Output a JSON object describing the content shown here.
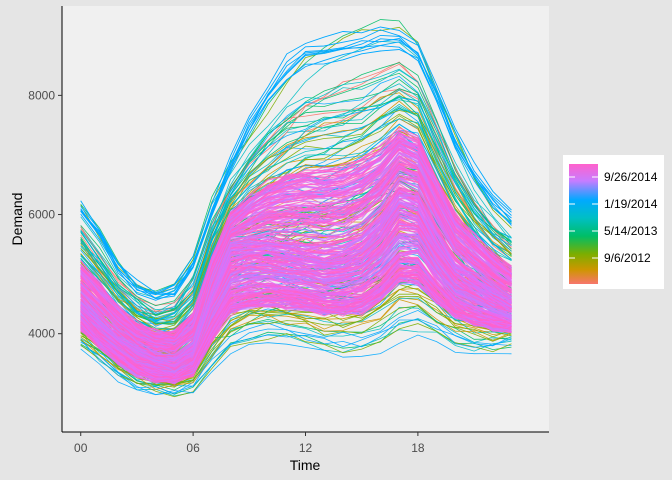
{
  "chart_data": {
    "type": "line",
    "xlabel": "Time",
    "ylabel": "Demand",
    "x_tick_labels": [
      "00",
      "06",
      "12",
      "18"
    ],
    "x_ticks": [
      0,
      6,
      12,
      18
    ],
    "xlim": [
      -1,
      25
    ],
    "y_ticks": [
      4000,
      6000,
      8000
    ],
    "y_tick_labels": [
      "4000",
      "6000",
      "8000"
    ],
    "ylim": [
      2350,
      9500
    ],
    "grid": false,
    "legend": {
      "position": "right",
      "type": "gradient",
      "labels": [
        "9/26/2014",
        "1/19/2014",
        "5/14/2013",
        "9/6/2012"
      ],
      "colors_top_to_bottom": [
        "#ff61cc",
        "#c77cff",
        "#00a9ff",
        "#00bfc4",
        "#00be67",
        "#7cae00",
        "#cd9600",
        "#f8766d"
      ]
    },
    "colors": {
      "panel_background": "#f0f0f0",
      "page_background": "#e5e5e5",
      "recent": "#ff61cc"
    },
    "hours": [
      0,
      1,
      2,
      3,
      4,
      5,
      6,
      7,
      8,
      9,
      10,
      11,
      12,
      13,
      14,
      15,
      16,
      17,
      18,
      19,
      20,
      21,
      22,
      23
    ],
    "profiles": {
      "upper_envelope": [
        6300,
        5850,
        5250,
        4900,
        4750,
        4850,
        5300,
        6200,
        7000,
        7700,
        8300,
        8800,
        9050,
        9150,
        9200,
        9250,
        9300,
        9250,
        9000,
        8300,
        7500,
        6900,
        6400,
        6100
      ],
      "typical_day": [
        4500,
        4200,
        3950,
        3750,
        3600,
        3550,
        3750,
        4700,
        5400,
        5450,
        5450,
        5400,
        5350,
        5300,
        5350,
        5500,
        5800,
        6300,
        6200,
        5600,
        5100,
        4900,
        4700,
        4500
      ],
      "lower_envelope": [
        3700,
        3450,
        3150,
        2950,
        2900,
        2900,
        2950,
        3150,
        3400,
        3550,
        3600,
        3600,
        3550,
        3450,
        3400,
        3350,
        3450,
        3550,
        3650,
        3600,
        3550,
        3500,
        3550,
        3650
      ],
      "peak_day_shape": [
        5600,
        5200,
        4800,
        4500,
        4350,
        4450,
        5000,
        5900,
        6300,
        6500,
        6700,
        7000,
        7400,
        7700,
        7900,
        8100,
        8300,
        8400,
        8100,
        7300,
        6600,
        6000,
        5500,
        5200
      ]
    }
  }
}
